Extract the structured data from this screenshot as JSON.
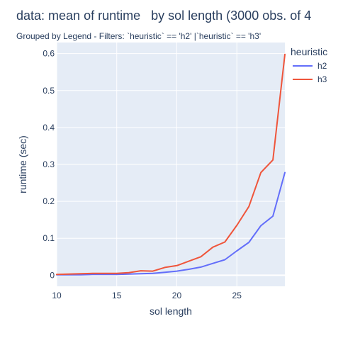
{
  "chart_data": {
    "type": "line",
    "title": "data: mean of runtime   by sol length (3000 obs. of 4",
    "subtitle": "Grouped by Legend - Filters: `heuristic` == 'h2' |`heuristic` == 'h3'",
    "xlabel": "sol length",
    "ylabel": "runtime (sec)",
    "xlim": [
      10,
      29
    ],
    "ylim": [
      -0.03,
      0.63
    ],
    "xticks": [
      10,
      15,
      20,
      25
    ],
    "yticks": [
      0,
      0.1,
      0.2,
      0.3,
      0.4,
      0.5,
      0.6
    ],
    "ytick_labels": [
      "0",
      "0.1",
      "0.2",
      "0.3",
      "0.4",
      "0.5",
      "0.6"
    ],
    "grid": true,
    "legend_title": "heuristic",
    "legend_position": "top-right",
    "series": [
      {
        "name": "h2",
        "color": "#636efa",
        "x": [
          10,
          11,
          12,
          13,
          14,
          15,
          16,
          17,
          18,
          19,
          20,
          21,
          22,
          23,
          24,
          25,
          26,
          27,
          28,
          29
        ],
        "y": [
          0.001,
          0.001,
          0.001,
          0.002,
          0.002,
          0.002,
          0.003,
          0.004,
          0.005,
          0.008,
          0.011,
          0.016,
          0.022,
          0.032,
          0.042,
          0.066,
          0.089,
          0.134,
          0.16,
          0.278
        ]
      },
      {
        "name": "h3",
        "color": "#ef553b",
        "x": [
          10,
          11,
          12,
          13,
          14,
          15,
          16,
          17,
          18,
          19,
          20,
          21,
          22,
          23,
          24,
          25,
          26,
          27,
          28,
          29
        ],
        "y": [
          0.002,
          0.003,
          0.004,
          0.005,
          0.005,
          0.005,
          0.007,
          0.012,
          0.011,
          0.021,
          0.026,
          0.038,
          0.05,
          0.076,
          0.09,
          0.135,
          0.186,
          0.278,
          0.312,
          0.598
        ]
      }
    ]
  }
}
